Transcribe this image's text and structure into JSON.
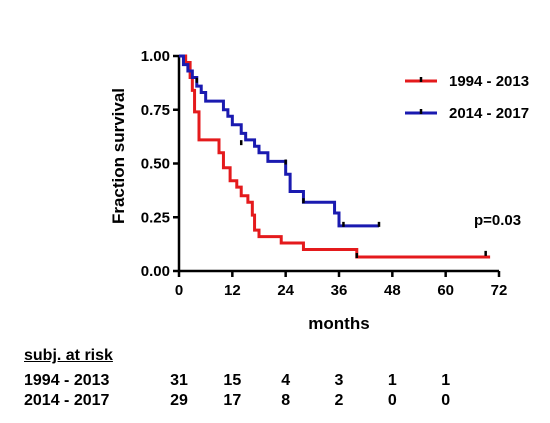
{
  "chart_data": {
    "type": "line",
    "subtype": "kaplan-meier",
    "xlabel": "months",
    "ylabel": "Fraction survival",
    "xlim": [
      0,
      72
    ],
    "ylim": [
      0,
      1.0
    ],
    "xticks": [
      0,
      12,
      24,
      36,
      48,
      60,
      72
    ],
    "yticks": [
      "0.00",
      "0.25",
      "0.50",
      "0.75",
      "1.00"
    ],
    "grid": false,
    "legend_position": "top-right",
    "annotation": "p=0.03",
    "series": [
      {
        "name": "1994 - 2013",
        "color": "#e41a1c",
        "steps": [
          [
            0,
            1.0
          ],
          [
            1.5,
            0.97
          ],
          [
            2.5,
            0.9
          ],
          [
            3,
            0.84
          ],
          [
            3.5,
            0.74
          ],
          [
            4.5,
            0.61
          ],
          [
            9,
            0.55
          ],
          [
            10,
            0.48
          ],
          [
            11.5,
            0.42
          ],
          [
            13,
            0.39
          ],
          [
            14,
            0.35
          ],
          [
            15.5,
            0.32
          ],
          [
            16.5,
            0.26
          ],
          [
            17,
            0.19
          ],
          [
            18,
            0.16
          ],
          [
            23,
            0.13
          ],
          [
            28,
            0.1
          ],
          [
            40,
            0.065
          ],
          [
            70,
            0.065
          ]
        ],
        "censored": [
          [
            40,
            0.065
          ],
          [
            69,
            0.075
          ]
        ]
      },
      {
        "name": "2014 - 2017",
        "color": "#1a1ab0",
        "steps": [
          [
            0,
            1.0
          ],
          [
            1,
            0.96
          ],
          [
            2,
            0.93
          ],
          [
            3,
            0.9
          ],
          [
            4,
            0.86
          ],
          [
            5,
            0.83
          ],
          [
            6,
            0.79
          ],
          [
            10,
            0.75
          ],
          [
            11,
            0.72
          ],
          [
            12,
            0.68
          ],
          [
            14,
            0.64
          ],
          [
            15,
            0.61
          ],
          [
            17,
            0.58
          ],
          [
            18,
            0.55
          ],
          [
            20,
            0.51
          ],
          [
            24,
            0.45
          ],
          [
            25,
            0.37
          ],
          [
            28,
            0.32
          ],
          [
            35,
            0.27
          ],
          [
            36,
            0.21
          ],
          [
            45,
            0.21
          ]
        ],
        "censored": [
          [
            4,
            0.88
          ],
          [
            14,
            0.59
          ],
          [
            24,
            0.5
          ],
          [
            28,
            0.32
          ],
          [
            37,
            0.21
          ],
          [
            45,
            0.21
          ]
        ]
      }
    ]
  },
  "risk_table": {
    "title": "subj. at risk",
    "timepoints": [
      0,
      12,
      24,
      36,
      48,
      60
    ],
    "rows": [
      {
        "label": "1994 - 2013",
        "values": [
          "31",
          "15",
          "4",
          "3",
          "1",
          "1"
        ]
      },
      {
        "label": "2014 - 2017",
        "values": [
          "29",
          "17",
          "8",
          "2",
          "0",
          "0"
        ]
      }
    ]
  }
}
